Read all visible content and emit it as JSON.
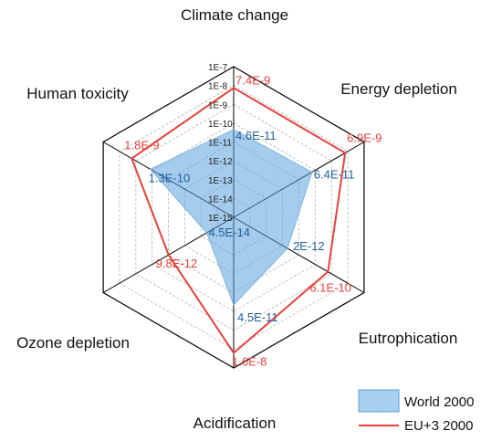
{
  "chart_data": {
    "type": "radar",
    "categories": [
      "Climate change",
      "Energy depletion",
      "Eutrophication",
      "Acidification",
      "Ozone depletion",
      "Human toxicity"
    ],
    "scale": "log",
    "range": [
      "1E-15",
      "1E-7"
    ],
    "ticks": [
      "1E-15",
      "1E-14",
      "1E-13",
      "1E-12",
      "1E-11",
      "1E-10",
      "1E-9",
      "1E-8",
      "1E-7"
    ],
    "grid": true,
    "legend_position": "bottom-right",
    "series": [
      {
        "name": "World 2000",
        "values": [
          4.6e-11,
          6.4e-11,
          2e-12,
          4.5e-11,
          4.5e-14,
          1.3e-10
        ],
        "labels": [
          "4.6E-11",
          "6.4E-11",
          "2E-12",
          "4.5E-11",
          "4.5E-14",
          "1.3E-10"
        ],
        "color": "#5ba3dc",
        "style": "area"
      },
      {
        "name": "EU+3 2000",
        "values": [
          7.4e-09,
          6.9e-09,
          6.1e-10,
          1.6e-08,
          9.8e-12,
          1.8e-09
        ],
        "labels": [
          "7.4E-9",
          "6.9E-9",
          "6.1E-10",
          "1.6E-8",
          "9.8E-12",
          "1.8E-9"
        ],
        "color": "#e8413c",
        "style": "line"
      }
    ]
  }
}
